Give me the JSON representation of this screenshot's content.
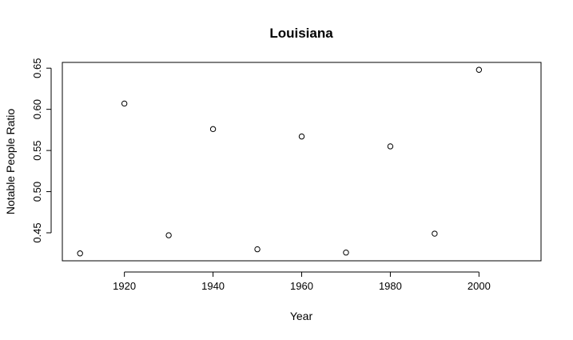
{
  "chart_data": {
    "type": "scatter",
    "title": "Louisiana",
    "xlabel": "Year",
    "ylabel": "Notable People Ratio",
    "xlim": [
      1906,
      2014
    ],
    "ylim": [
      0.416,
      0.657
    ],
    "xticks": [
      1920,
      1940,
      1960,
      1980,
      2000
    ],
    "xtick_labels": [
      "1920",
      "1940",
      "1960",
      "1980",
      "2000"
    ],
    "yticks": [
      0.45,
      0.5,
      0.55,
      0.6,
      0.65
    ],
    "ytick_labels": [
      "0.45",
      "0.50",
      "0.55",
      "0.60",
      "0.65"
    ],
    "grid": false,
    "legend": "none",
    "marker": "open-circle",
    "points": [
      {
        "x": 1910,
        "y": 0.425
      },
      {
        "x": 1920,
        "y": 0.607
      },
      {
        "x": 1930,
        "y": 0.447
      },
      {
        "x": 1940,
        "y": 0.576
      },
      {
        "x": 1950,
        "y": 0.43
      },
      {
        "x": 1960,
        "y": 0.567
      },
      {
        "x": 1970,
        "y": 0.426
      },
      {
        "x": 1980,
        "y": 0.555
      },
      {
        "x": 1990,
        "y": 0.449
      },
      {
        "x": 2000,
        "y": 0.648
      }
    ]
  }
}
